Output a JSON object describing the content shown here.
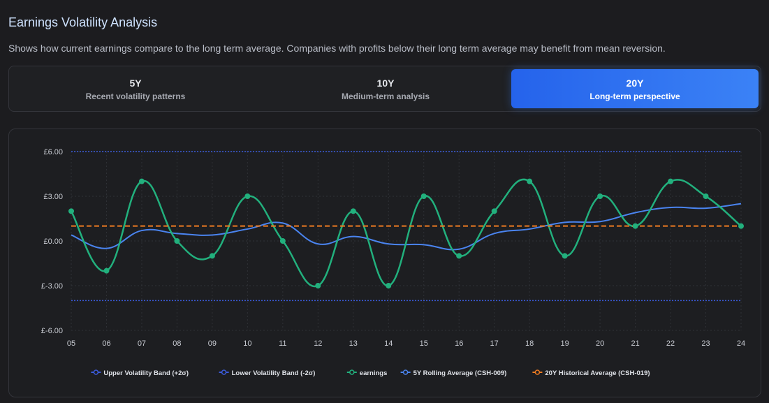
{
  "header": {
    "title": "Earnings Volatility Analysis",
    "subtitle": "Shows how current earnings compare to the long term average. Companies with profits below their long term average may benefit from mean reversion."
  },
  "tabs": [
    {
      "label": "5Y",
      "description": "Recent volatility patterns",
      "active": false
    },
    {
      "label": "10Y",
      "description": "Medium-term analysis",
      "active": false
    },
    {
      "label": "20Y",
      "description": "Long-term perspective",
      "active": true
    }
  ],
  "colors": {
    "upper_band": "#3b5bdb",
    "lower_band": "#3b5bdb",
    "earnings": "#22b07d",
    "rolling": "#4a84f0",
    "historical": "#f07c22",
    "grid": "#2f3136",
    "tick": "#c9ccd3"
  },
  "chart_data": {
    "type": "line",
    "title": "",
    "xlabel": "",
    "ylabel": "",
    "categories": [
      "05",
      "06",
      "07",
      "08",
      "09",
      "10",
      "11",
      "12",
      "13",
      "14",
      "15",
      "16",
      "17",
      "18",
      "19",
      "20",
      "21",
      "22",
      "23",
      "24"
    ],
    "ylim": [
      -6,
      6
    ],
    "yticks": [
      -6,
      -3,
      0,
      3,
      6
    ],
    "ytick_labels": [
      "£-6.00",
      "£-3.00",
      "£0.00",
      "£3.00",
      "£6.00"
    ],
    "legend_position": "bottom-center",
    "series": [
      {
        "name": "Upper Volatility Band (+2σ)",
        "style": "dotted",
        "values": [
          6.0,
          6.0,
          6.0,
          6.0,
          6.0,
          6.0,
          6.0,
          6.0,
          6.0,
          6.0,
          6.0,
          6.0,
          6.0,
          6.0,
          6.0,
          6.0,
          6.0,
          6.0,
          6.0,
          6.0
        ]
      },
      {
        "name": "Lower Volatility Band (-2σ)",
        "style": "dotted",
        "values": [
          -4.0,
          -4.0,
          -4.0,
          -4.0,
          -4.0,
          -4.0,
          -4.0,
          -4.0,
          -4.0,
          -4.0,
          -4.0,
          -4.0,
          -4.0,
          -4.0,
          -4.0,
          -4.0,
          -4.0,
          -4.0,
          -4.0,
          -4.0
        ]
      },
      {
        "name": "earnings",
        "style": "solid-points",
        "values": [
          2,
          -2,
          4,
          0,
          -1,
          3,
          0,
          -3,
          2,
          -3,
          3,
          -1,
          2,
          4,
          -1,
          3,
          1,
          4,
          3,
          1
        ]
      },
      {
        "name": "5Y Rolling Average (CSH-009)",
        "style": "solid",
        "values": [
          0.4,
          -0.5,
          0.7,
          0.5,
          0.4,
          0.8,
          1.2,
          -0.2,
          0.3,
          -0.2,
          -0.25,
          -0.55,
          0.5,
          0.8,
          1.25,
          1.3,
          1.9,
          2.25,
          2.2,
          2.5
        ]
      },
      {
        "name": "20Y Historical Average (CSH-019)",
        "style": "dashed",
        "values": [
          1,
          1,
          1,
          1,
          1,
          1,
          1,
          1,
          1,
          1,
          1,
          1,
          1,
          1,
          1,
          1,
          1,
          1,
          1,
          1
        ]
      }
    ]
  }
}
